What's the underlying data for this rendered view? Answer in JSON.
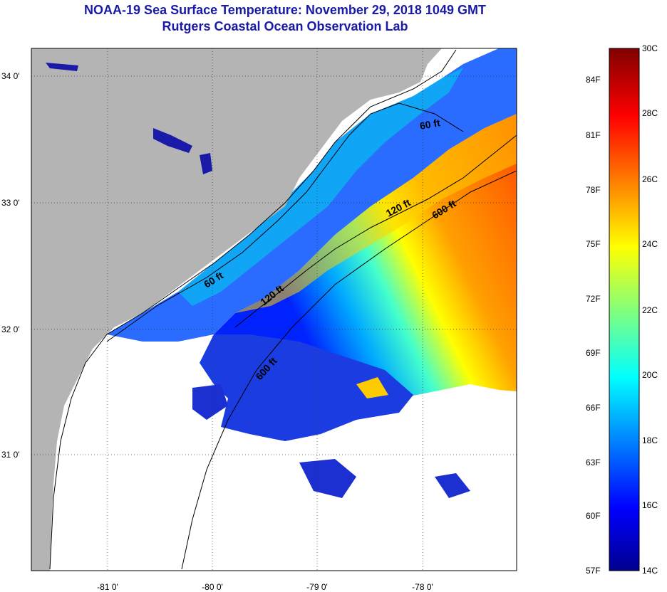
{
  "header": {
    "title": "NOAA-19 Sea Surface Temperature:  November 29, 2018 1049 GMT",
    "subtitle": "Rutgers Coastal Ocean Observation Lab"
  },
  "map": {
    "lat_labels": [
      "34 0'",
      "33 0'",
      "32 0'",
      "31 0'"
    ],
    "lon_labels": [
      "-81 0'",
      "-80 0'",
      "-79 0'",
      "-78 0'"
    ],
    "contours": [
      "60 ft",
      "120 ft",
      "600 ft",
      "60 ft",
      "120 ft",
      "600 ft"
    ]
  },
  "colorbar": {
    "fahrenheit": [
      "84F",
      "81F",
      "78F",
      "75F",
      "72F",
      "69F",
      "66F",
      "63F",
      "60F",
      "57F"
    ],
    "celsius": [
      "30C",
      "28C",
      "26C",
      "24C",
      "22C",
      "20C",
      "18C",
      "16C",
      "14C"
    ]
  },
  "colors": {
    "land": "#b4b4b4",
    "cloud": "#ffffff",
    "title": "#1a1aa8"
  }
}
